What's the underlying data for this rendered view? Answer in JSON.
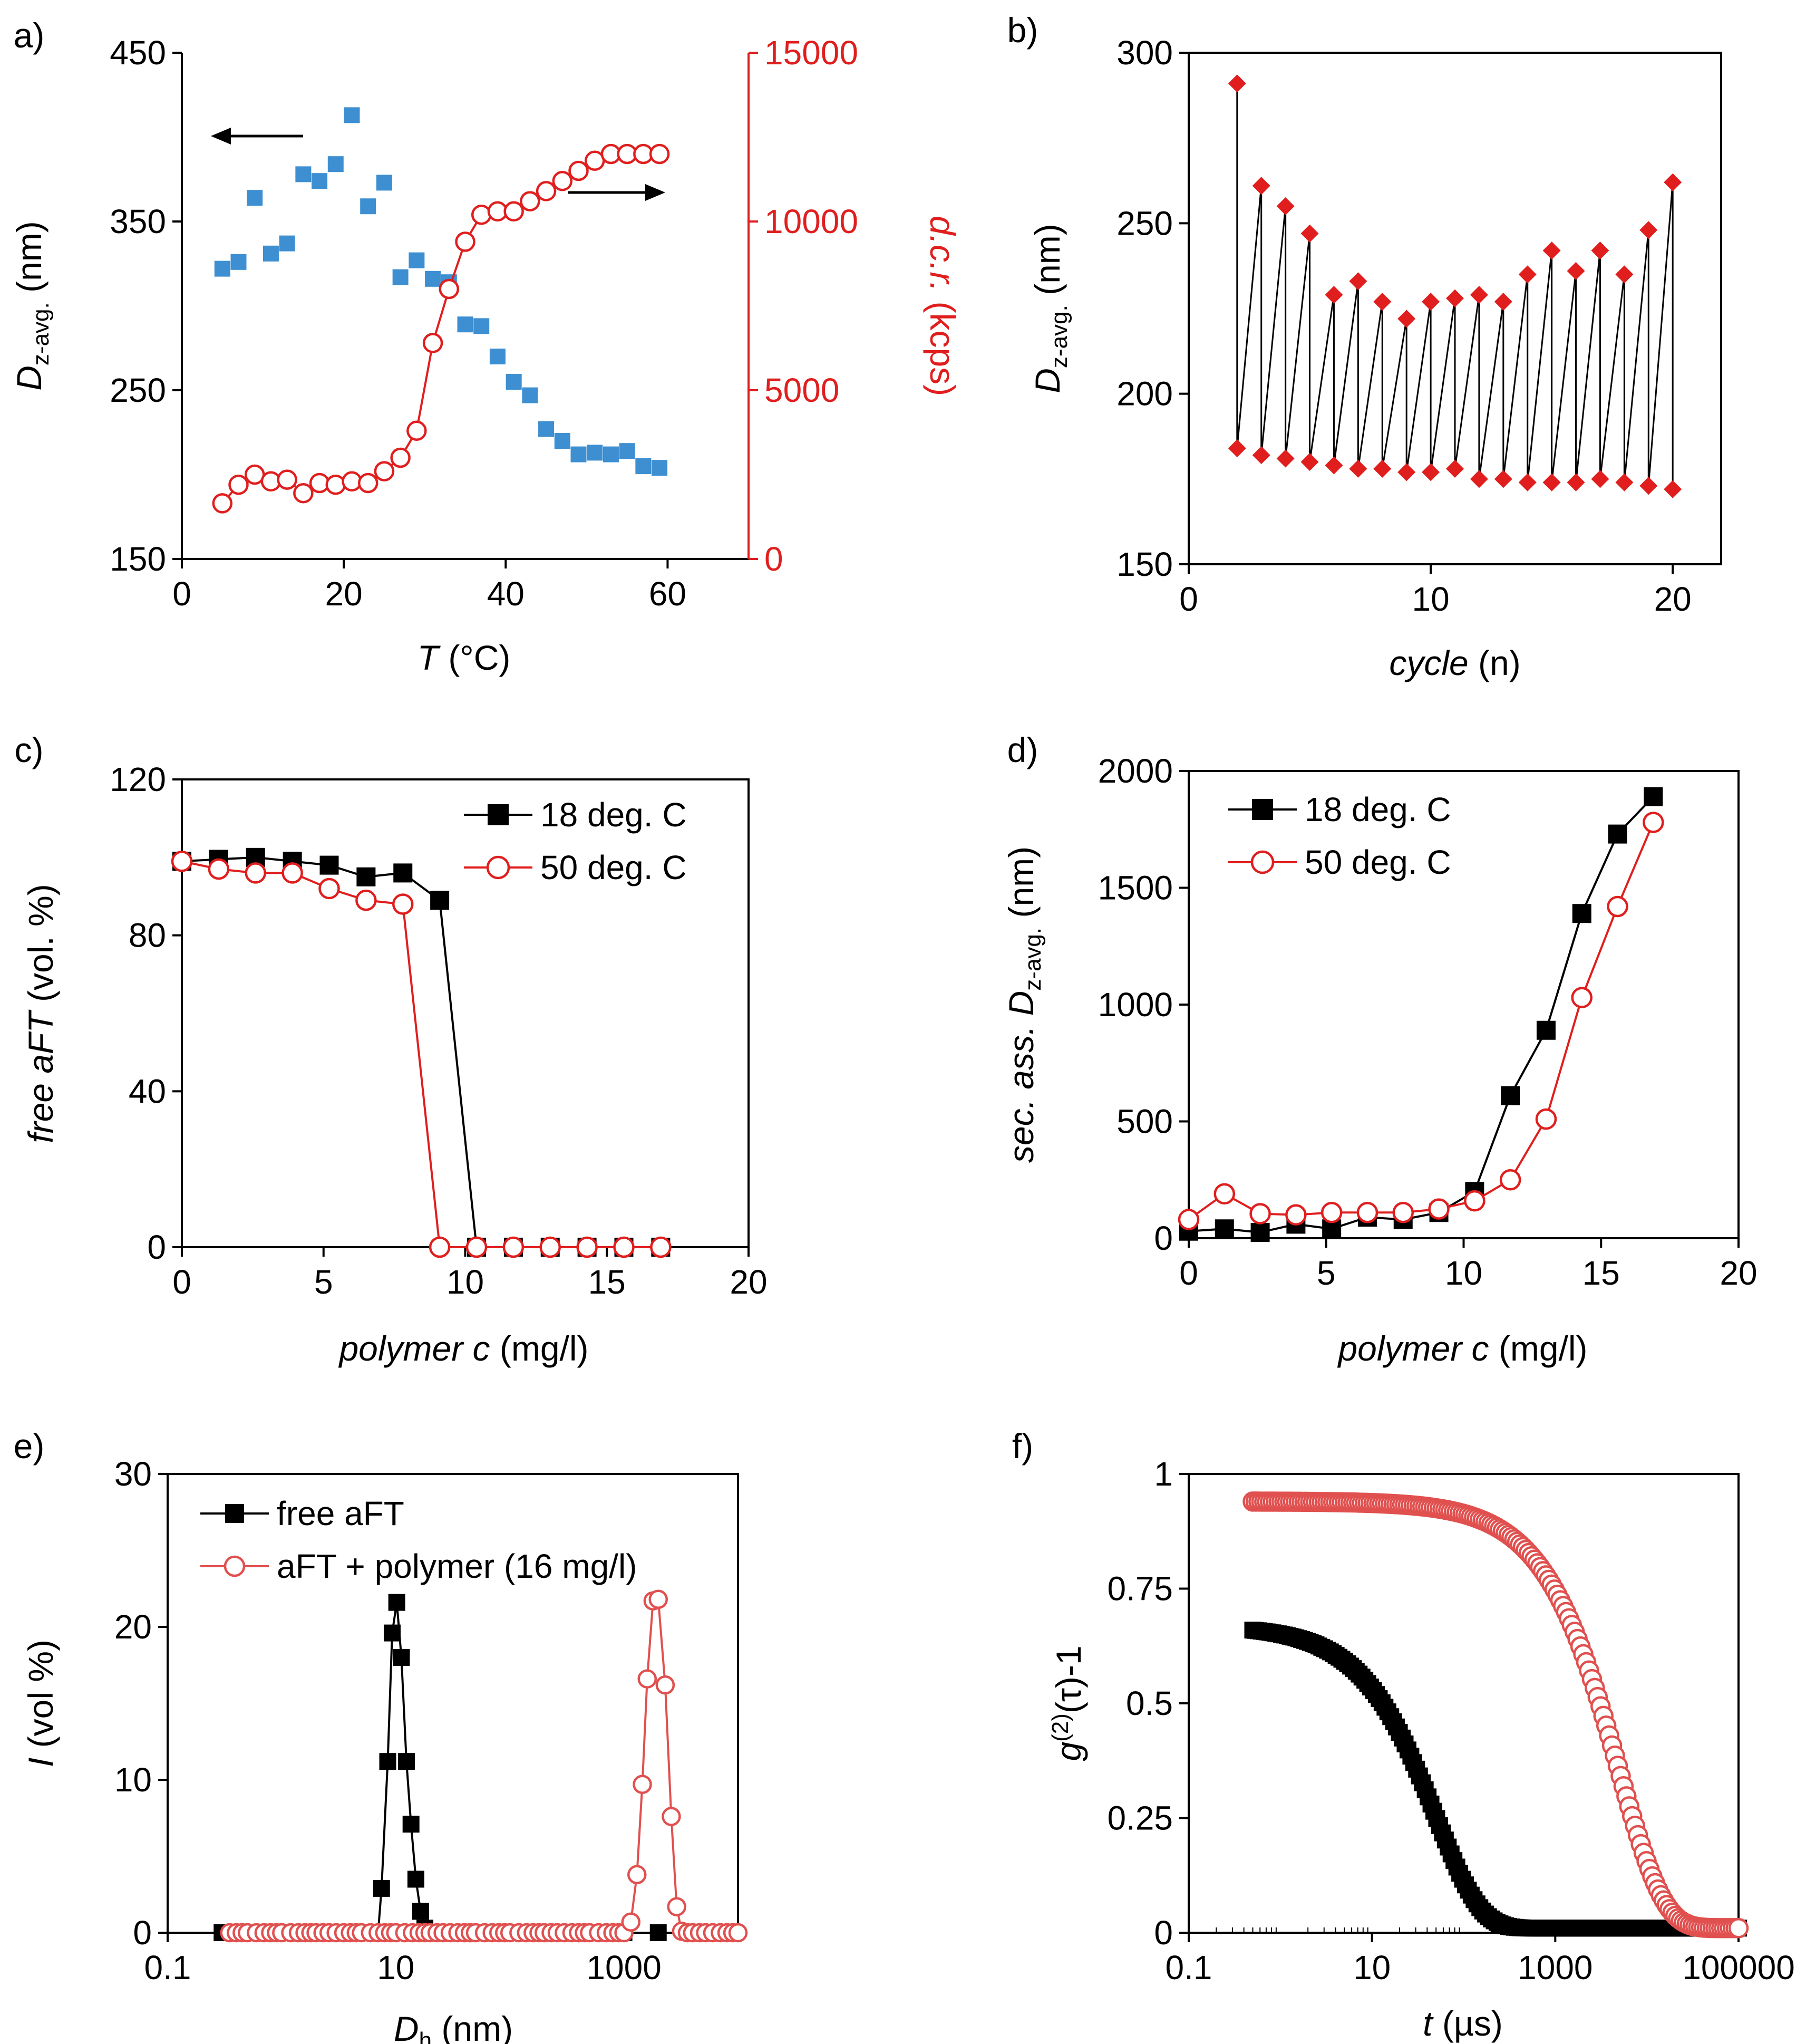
{
  "chart_data": [
    {
      "id": "a",
      "panel_label": "a)",
      "type": "scatter",
      "xlabel": "T",
      "xlabel_unit": "(°C)",
      "ylabel_main": "D",
      "ylabel_sub": "z-avg.",
      "ylabel_unit": "(nm)",
      "y2label": "d.c.r. (kcps)",
      "xlim": [
        0,
        70
      ],
      "ylim": [
        150,
        450
      ],
      "y2lim": [
        0,
        15000
      ],
      "xticks": [
        "0",
        "20",
        "40",
        "60"
      ],
      "yticks": [
        "150",
        "250",
        "350",
        "450"
      ],
      "y2ticks": [
        "0",
        "5000",
        "10000",
        "15000"
      ],
      "colors": {
        "dz": "#3d8fd1",
        "dcr": "#e01e1e"
      },
      "dz_points": {
        "x": [
          5,
          7,
          9,
          11,
          13,
          15,
          17,
          19,
          21,
          23,
          25,
          27,
          29,
          31,
          33,
          35,
          37,
          39,
          41,
          43,
          45,
          47,
          49,
          51,
          53,
          55,
          57,
          59
        ],
        "y": [
          322,
          326,
          364,
          331,
          337,
          378,
          374,
          384,
          413,
          359,
          373,
          317,
          327,
          316,
          314,
          289,
          288,
          270,
          255,
          247,
          227,
          220,
          212,
          213,
          212,
          214,
          205,
          204
        ]
      },
      "dcr_points": {
        "x": [
          5,
          7,
          9,
          11,
          13,
          15,
          17,
          19,
          21,
          23,
          25,
          27,
          29,
          31,
          33,
          35,
          37,
          39,
          41,
          43,
          45,
          47,
          49,
          51,
          53,
          55,
          57,
          59
        ],
        "y": [
          1650,
          2200,
          2500,
          2300,
          2350,
          1950,
          2250,
          2200,
          2300,
          2250,
          2600,
          3000,
          3800,
          6400,
          8000,
          9400,
          10200,
          10300,
          10300,
          10600,
          10900,
          11200,
          11500,
          11800,
          12000,
          12000,
          12000,
          12000
        ]
      },
      "arrows": [
        "left",
        "right"
      ]
    },
    {
      "id": "b",
      "panel_label": "b)",
      "type": "line",
      "xlabel": "cycle",
      "xlabel_unit": "(n)",
      "ylabel_main": "D",
      "ylabel_sub": "z-avg.",
      "ylabel_unit": "(nm)",
      "xlim": [
        0,
        22
      ],
      "ylim": [
        150,
        300
      ],
      "xticks": [
        "0",
        "10",
        "20"
      ],
      "yticks": [
        "150",
        "200",
        "250",
        "300"
      ],
      "colors": {
        "marker": "#e01e1e",
        "line": "#000000"
      },
      "points": {
        "x": [
          2,
          2,
          3,
          3,
          4,
          4,
          5,
          5,
          6,
          6,
          7,
          7,
          8,
          8,
          9,
          9,
          10,
          10,
          11,
          11,
          12,
          12,
          13,
          13,
          14,
          14,
          15,
          15,
          16,
          16,
          17,
          17,
          18,
          18,
          19,
          19,
          20,
          20
        ],
        "y": [
          291,
          184,
          261,
          182,
          255,
          181,
          247,
          180,
          229,
          179,
          233,
          178,
          227,
          178,
          222,
          177,
          227,
          177,
          228,
          178,
          229,
          175,
          227,
          175,
          235,
          174,
          242,
          174,
          236,
          174,
          242,
          175,
          235,
          174,
          248,
          173,
          262,
          172
        ]
      }
    },
    {
      "id": "c",
      "panel_label": "c)",
      "type": "line",
      "xlabel": "polymer c",
      "xlabel_unit": "(mg/l)",
      "ylabel_main": "free aFT",
      "ylabel_unit": "(vol. %)",
      "xlim": [
        0,
        20
      ],
      "ylim": [
        0,
        120
      ],
      "xticks": [
        "0",
        "5",
        "10",
        "15",
        "20"
      ],
      "yticks": [
        "0",
        "40",
        "80",
        "120"
      ],
      "legend": [
        "18 deg. C",
        "50 deg. C"
      ],
      "series": [
        {
          "name": "18 deg. C",
          "color": "#000000",
          "marker": "square",
          "x": [
            0,
            1.3,
            2.6,
            3.9,
            5.2,
            6.5,
            7.8,
            9.1,
            10.4,
            11.7,
            13.0,
            14.3,
            15.6,
            16.9
          ],
          "y": [
            99,
            99.5,
            100,
            99,
            98,
            95,
            96,
            89,
            0,
            0,
            0,
            0,
            0,
            0
          ]
        },
        {
          "name": "50 deg. C",
          "color": "#e01e1e",
          "marker": "circle",
          "x": [
            0,
            1.3,
            2.6,
            3.9,
            5.2,
            6.5,
            7.8,
            9.1,
            10.4,
            11.7,
            13.0,
            14.3,
            15.6,
            16.9
          ],
          "y": [
            99,
            97,
            96,
            96,
            92,
            89,
            88,
            0,
            0,
            0,
            0,
            0,
            0,
            0
          ]
        }
      ]
    },
    {
      "id": "d",
      "panel_label": "d)",
      "type": "line",
      "xlabel": "polymer c",
      "xlabel_unit": "(mg/l)",
      "ylabel_pre": "sec. ass. D",
      "ylabel_sub": "z-avg.",
      "ylabel_unit": "(nm)",
      "xlim": [
        0,
        20
      ],
      "ylim": [
        0,
        2000
      ],
      "xticks": [
        "0",
        "5",
        "10",
        "15",
        "20"
      ],
      "yticks": [
        "0",
        "500",
        "1000",
        "1500",
        "2000"
      ],
      "legend": [
        "18 deg. C",
        "50 deg. C"
      ],
      "series": [
        {
          "name": "18 deg. C",
          "color": "#000000",
          "marker": "square",
          "x": [
            0,
            1.3,
            2.6,
            3.9,
            5.2,
            6.5,
            7.8,
            9.1,
            10.4,
            11.7,
            13.0,
            14.3,
            15.6,
            16.9
          ],
          "y": [
            30,
            40,
            25,
            60,
            40,
            90,
            80,
            110,
            200,
            610,
            890,
            1390,
            1730,
            1890
          ]
        },
        {
          "name": "50 deg. C",
          "color": "#e01e1e",
          "marker": "circle",
          "x": [
            0,
            1.3,
            2.6,
            3.9,
            5.2,
            6.5,
            7.8,
            9.1,
            10.4,
            11.7,
            13.0,
            14.3,
            15.6,
            16.9
          ],
          "y": [
            80,
            190,
            105,
            100,
            110,
            110,
            110,
            125,
            160,
            250,
            510,
            1030,
            1420,
            1780
          ]
        }
      ]
    },
    {
      "id": "e",
      "panel_label": "e)",
      "type": "line",
      "xscale": "log",
      "xlabel": "D",
      "xlabel_sub": "h",
      "xlabel_unit": "(nm)",
      "ylabel_main": "I",
      "ylabel_unit": "(vol %)",
      "xlim": [
        0.1,
        10000
      ],
      "ylim": [
        0,
        30
      ],
      "xticks": [
        "0.1",
        "10",
        "1000"
      ],
      "xtick_values": [
        0.1,
        10,
        1000
      ],
      "yticks": [
        "0",
        "10",
        "20",
        "30"
      ],
      "legend": [
        "free aFT",
        "aFT + polymer (16 mg/l)"
      ],
      "series": [
        {
          "name": "free aFT",
          "color": "#000000",
          "marker": "square",
          "x": [
            0.3,
            0.5,
            0.8,
            1,
            2,
            3,
            4,
            5,
            6,
            7,
            7.5,
            8.5,
            9.3,
            10.2,
            11.2,
            12.4,
            13.6,
            15,
            16.5,
            18,
            25,
            40,
            100,
            1000,
            2000,
            5000,
            9000
          ],
          "y": [
            0,
            0,
            0,
            0,
            0,
            0,
            0,
            0,
            0,
            0,
            2.9,
            11.2,
            19.6,
            21.6,
            18,
            11.2,
            7.1,
            3.5,
            1.4,
            0.3,
            0,
            0,
            0,
            0,
            0,
            0,
            0
          ]
        },
        {
          "name": "aFT + polymer (16 mg/l)",
          "color": "#e0504f",
          "marker": "circle",
          "x": [
            0.35,
            0.4,
            0.45,
            0.5,
            0.6,
            0.7,
            0.8,
            0.9,
            1,
            1.2,
            1.4,
            1.6,
            1.8,
            2,
            2.3,
            2.6,
            3,
            3.5,
            4,
            4.5,
            5,
            6,
            7,
            8,
            9,
            10,
            12,
            14,
            16,
            18,
            20,
            23,
            26,
            30,
            35,
            40,
            45,
            50,
            60,
            70,
            80,
            90,
            100,
            120,
            140,
            160,
            180,
            200,
            230,
            260,
            300,
            350,
            400,
            450,
            500,
            600,
            700,
            800,
            900,
            1000,
            1150,
            1300,
            1450,
            1600,
            1800,
            2000,
            2300,
            2600,
            2900,
            3200,
            3600,
            4000,
            4600,
            5200,
            6000,
            7000,
            8000,
            9000,
            10000
          ],
          "y": [
            0,
            0,
            0,
            0,
            0,
            0,
            0,
            0,
            0,
            0,
            0,
            0,
            0,
            0,
            0,
            0,
            0,
            0,
            0,
            0,
            0,
            0,
            0,
            0,
            0,
            0,
            0,
            0,
            0,
            0,
            0,
            0,
            0,
            0,
            0,
            0,
            0,
            0,
            0,
            0,
            0,
            0,
            0,
            0,
            0,
            0,
            0,
            0,
            0,
            0,
            0,
            0,
            0,
            0,
            0,
            0,
            0,
            0,
            0,
            0,
            0.7,
            3.8,
            9.7,
            16.6,
            21.7,
            21.8,
            16.2,
            7.6,
            1.7,
            0.1,
            0,
            0,
            0,
            0,
            0,
            0,
            0,
            0,
            0
          ]
        }
      ]
    },
    {
      "id": "f",
      "panel_label": "f)",
      "type": "scatter",
      "xscale": "log",
      "xlabel": "t",
      "xlabel_unit": "(µs)",
      "ylabel_main": "g",
      "ylabel_sup": "(2)",
      "ylabel_tail": "(τ)-1",
      "xlim": [
        0.1,
        100000
      ],
      "ylim": [
        0,
        1
      ],
      "xticks": [
        "0.1",
        "10",
        "1000",
        "100000"
      ],
      "xtick_values": [
        0.1,
        10,
        1000,
        100000
      ],
      "yticks": [
        "0",
        "0.25",
        "0.5",
        "0.75",
        "1"
      ],
      "series": [
        {
          "name": "free aFT",
          "color": "#000000",
          "marker": "square",
          "g0": 0.66,
          "tau": 50,
          "t_min": 0.5,
          "t_max": 100000,
          "baseline": 0.01
        },
        {
          "name": "aFT + polymer",
          "color": "#e0504f",
          "marker": "circle",
          "g0": 0.93,
          "tau": 5000,
          "t_min": 0.5,
          "t_max": 100000,
          "baseline": 0.01
        }
      ]
    }
  ]
}
